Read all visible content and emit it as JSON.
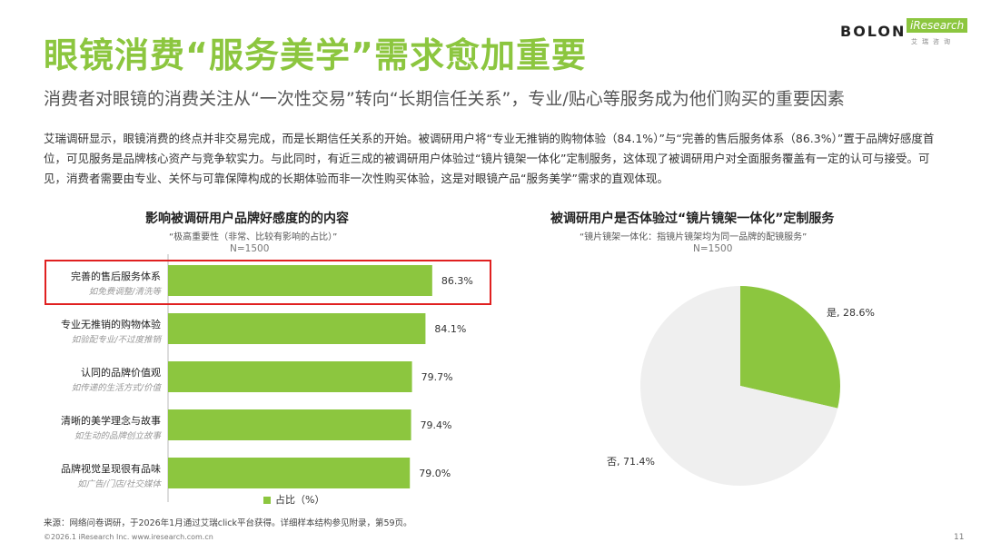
{
  "header": {
    "title": "眼镜消费“服务美学”需求愈加重要",
    "subtitle": "消费者对眼镜的消费关注从“一次性交易”转向“长期信任关系”，专业/贴心等服务成为他们购买的重要因素",
    "body": "艾瑞调研显示，眼镜消费的终点并非交易完成，而是长期信任关系的开始。被调研用户将“专业无推销的购物体验（84.1%）”与“完善的售后服务体系（86.3%）”置于品牌好感度首位，可见服务是品牌核心资产与竞争软实力。与此同时，有近三成的被调研用户体验过“镜片镜架一体化”定制服务，这体现了被调研用户对全面服务覆盖有一定的认可与接受。可见，消费者需要由专业、关怀与可靠保障构成的长期体验而非一次性购买体验，这是对眼镜产品“服务美学”需求的直观体现。"
  },
  "logo": {
    "brand": "BOLON",
    "partner": "iResearch",
    "partner_sub": "艾瑞咨询"
  },
  "colors": {
    "accent": "#8cc63f",
    "pie_other": "#efefef",
    "highlight_box": "#e02020"
  },
  "left_chart": {
    "title": "影响被调研用户品牌好感度的的内容",
    "subtitle": "“极高重要性（非常、比较有影响的占比）”",
    "n": "N=1500",
    "legend": "占比（%）"
  },
  "right_chart": {
    "title": "被调研用户是否体验过“镜片镜架一体化”定制服务",
    "subtitle": "“镜片镜架一体化：指镜片镜架均为同一品牌的配镜服务”",
    "n": "N=1500"
  },
  "chart_data": [
    {
      "type": "bar",
      "orientation": "horizontal",
      "categories": [
        "完善的售后服务体系",
        "专业无推销的购物体验",
        "认同的品牌价值观",
        "清晰的美学理念与故事",
        "品牌视觉呈现很有品味"
      ],
      "category_notes": [
        "如免费调整/清洗等",
        "如验配专业/不过度推销",
        "如传递的生活方式/价值",
        "如生动的品牌创立故事",
        "如广告/门店/社交媒体"
      ],
      "series": [
        {
          "name": "占比（%）",
          "values": [
            86.3,
            84.1,
            79.7,
            79.4,
            79.0
          ]
        }
      ],
      "value_labels": [
        "86.3%",
        "84.1%",
        "79.7%",
        "79.4%",
        "79.0%"
      ],
      "highlighted_category": "完善的售后服务体系",
      "legend_position": "bottom"
    },
    {
      "type": "pie",
      "categories": [
        "是",
        "否"
      ],
      "values": [
        28.6,
        71.4
      ],
      "labels": [
        "是, 28.6%",
        "否, 71.4%"
      ]
    }
  ],
  "footer": {
    "source": "来源：网络问卷调研，于2026年1月通过艾瑞click平台获得。详细样本结构参见附录，第59页。",
    "copyright": "©2026.1 iResearch Inc. www.iresearch.com.cn",
    "page": "11"
  }
}
